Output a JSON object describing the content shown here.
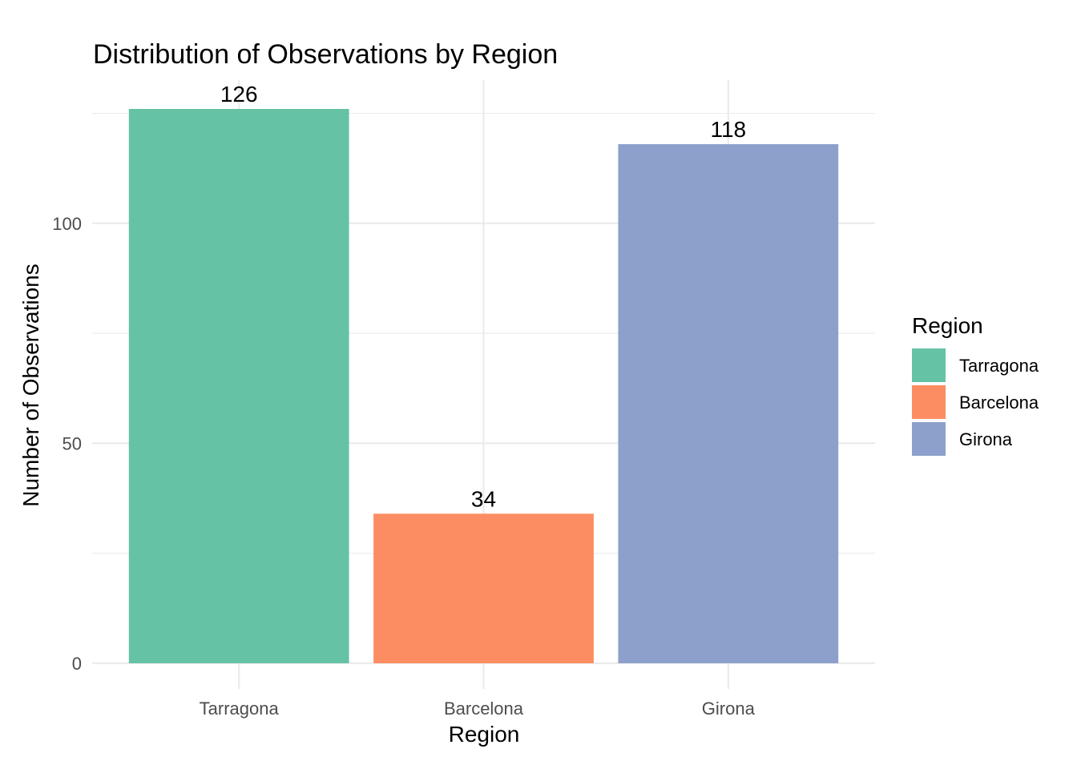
{
  "chart_data": {
    "type": "bar",
    "title": "Distribution of Observations by Region",
    "xlabel": "Region",
    "ylabel": "Number of Observations",
    "categories": [
      "Tarragona",
      "Barcelona",
      "Girona"
    ],
    "values": [
      126,
      34,
      118
    ],
    "data_labels": [
      "126",
      "34",
      "118"
    ],
    "colors": [
      "#66c2a5",
      "#fc8d62",
      "#8da0cb"
    ],
    "ylim": [
      0,
      126
    ],
    "yticks": [
      0,
      50,
      100
    ],
    "ytick_labels": [
      "0",
      "50",
      "100"
    ],
    "grid": true,
    "legend": {
      "title": "Region",
      "position": "right",
      "entries": [
        "Tarragona",
        "Barcelona",
        "Girona"
      ]
    }
  }
}
